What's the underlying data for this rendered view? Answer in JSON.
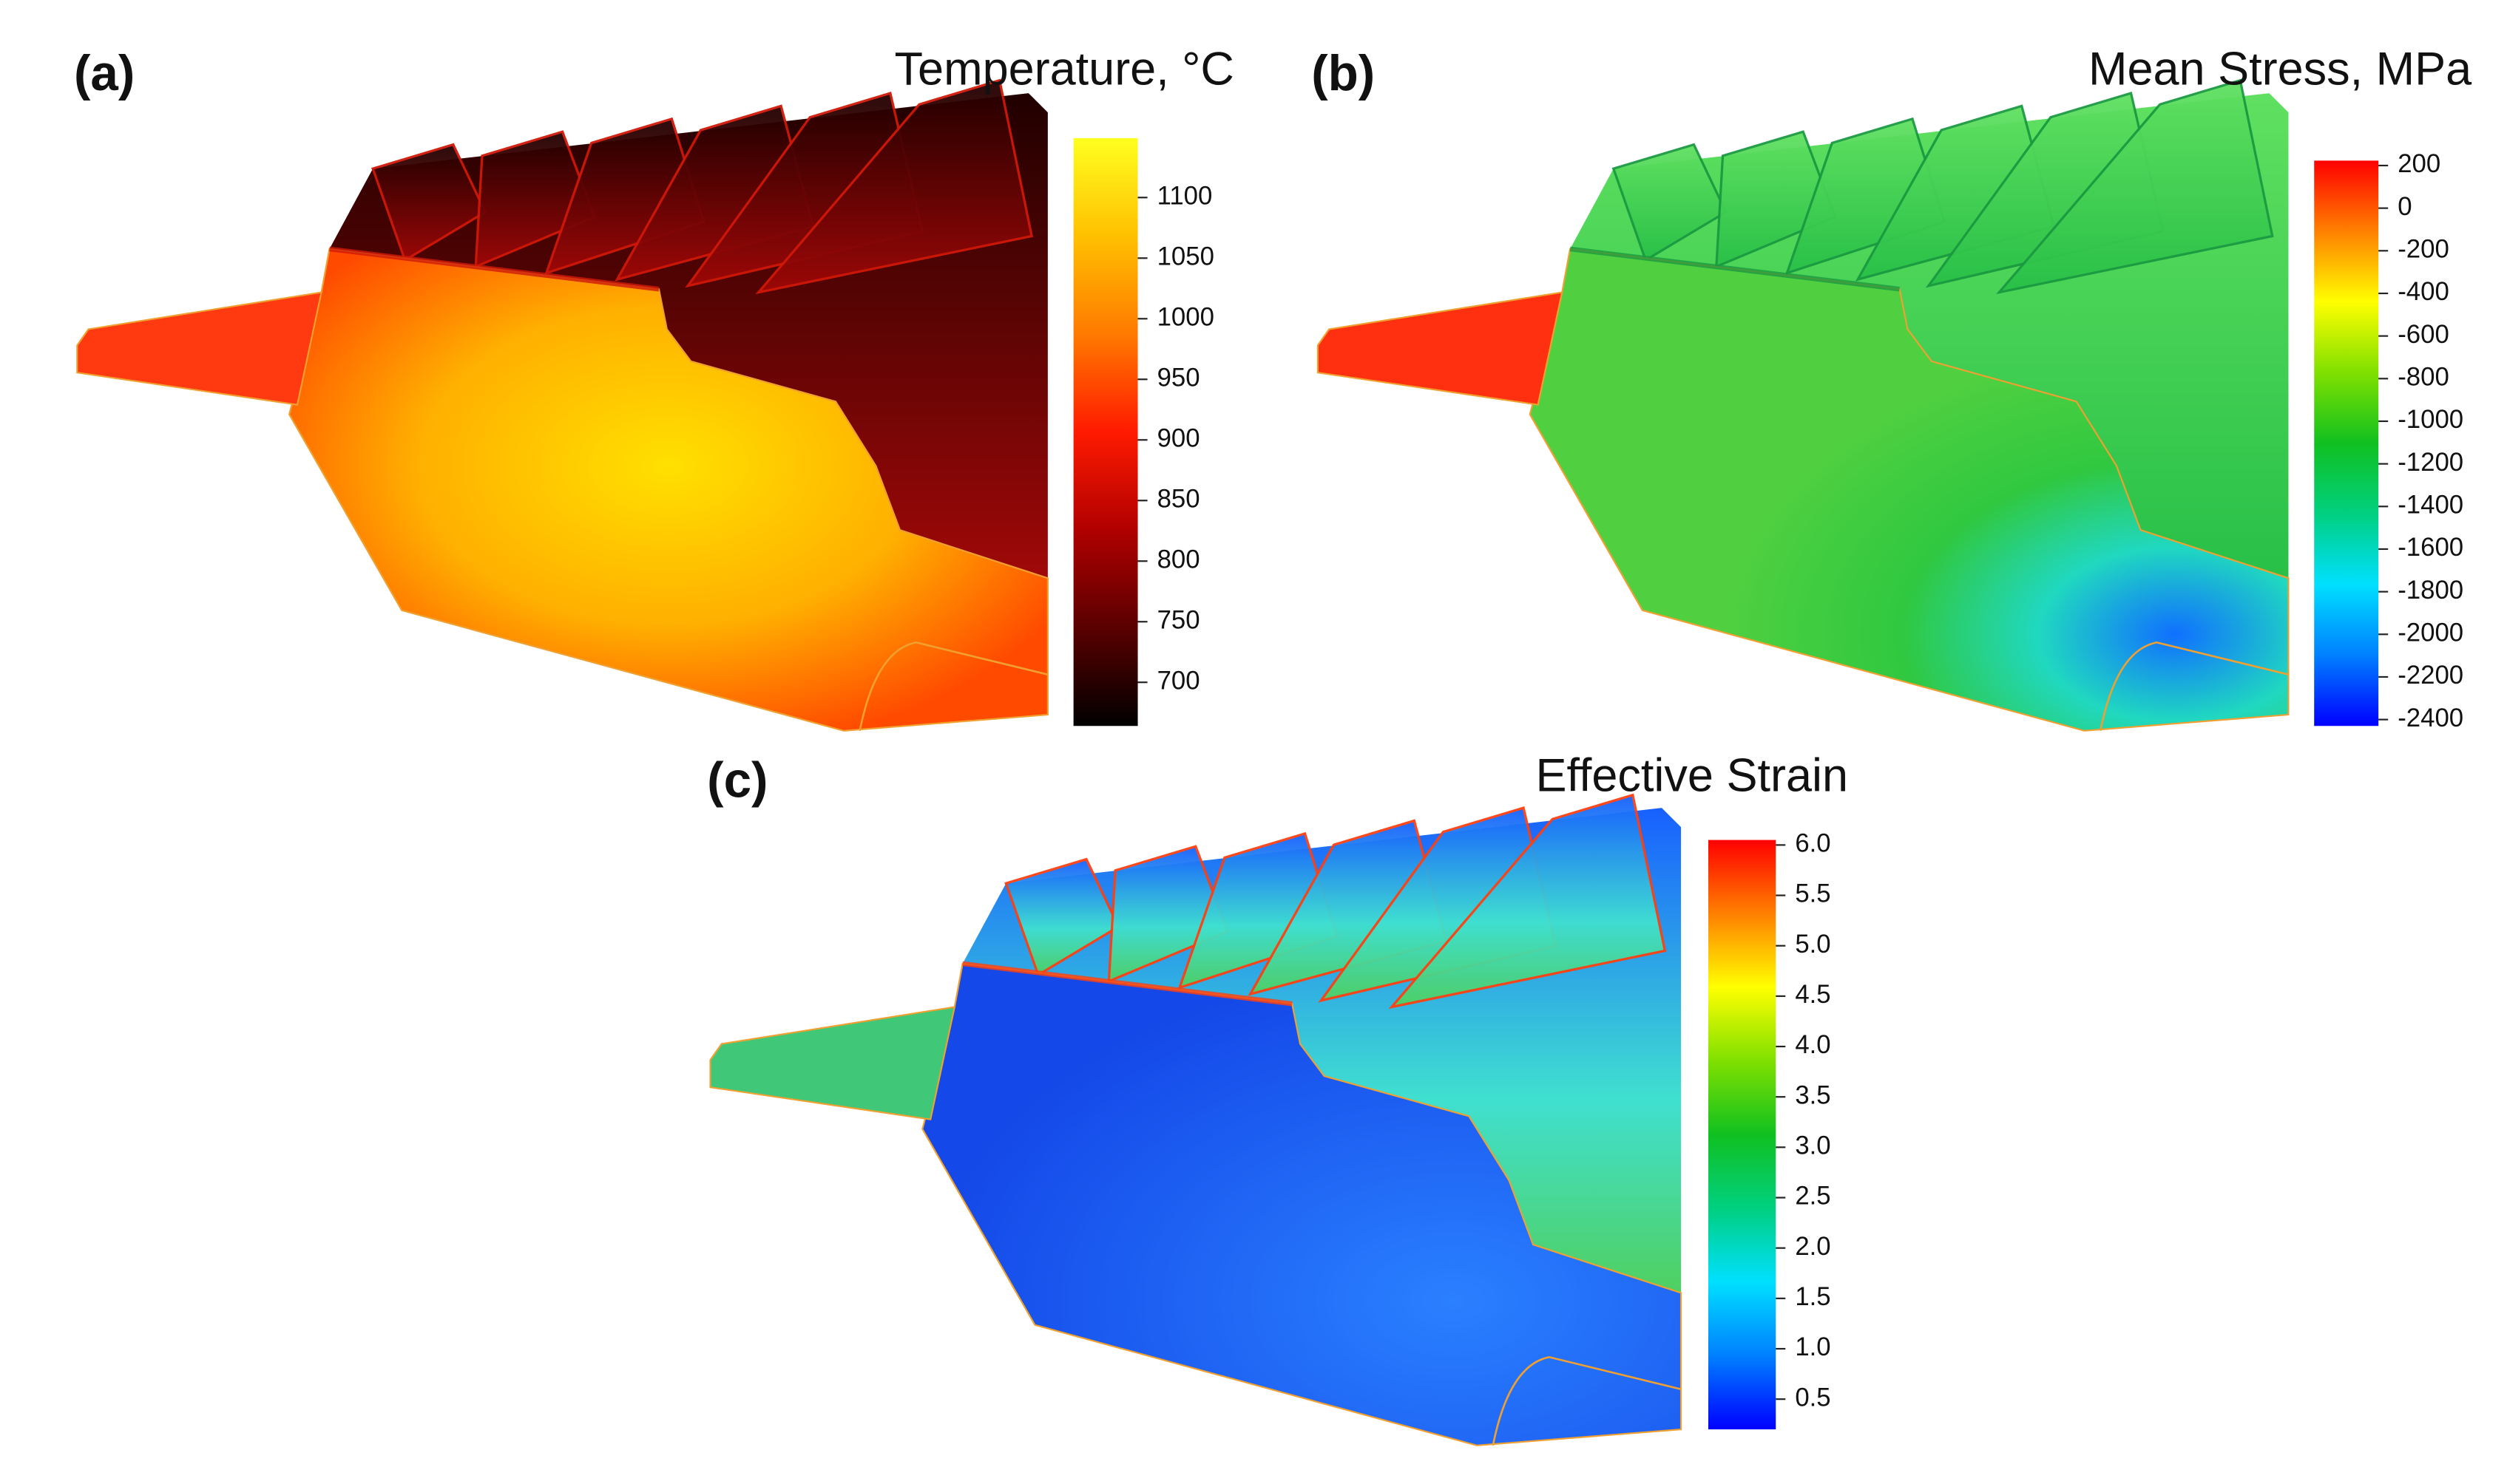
{
  "chart_data": [
    {
      "type": "contour",
      "label": "(a)",
      "title": "Temperature, °C",
      "clim": [
        664,
        1149
      ],
      "ticks": [
        700,
        750,
        800,
        850,
        900,
        950,
        1000,
        1050,
        1100
      ],
      "colormap": [
        "#000000",
        "#5a0000",
        "#b00000",
        "#ff1a00",
        "#ff7a00",
        "#ffc000",
        "#ffff20"
      ]
    },
    {
      "type": "contour",
      "label": "(b)",
      "title": "Mean Stress, MPa",
      "clim": [
        -2430,
        223
      ],
      "ticks": [
        -2400,
        -2200,
        -2000,
        -1800,
        -1600,
        -1400,
        -1200,
        -1000,
        -800,
        -600,
        -400,
        -200,
        0,
        200
      ],
      "colormap": [
        "#0000ff",
        "#0080ff",
        "#00e0ff",
        "#00d080",
        "#10c020",
        "#80e000",
        "#ffff00",
        "#ff8000",
        "#ff0000"
      ]
    },
    {
      "type": "contour",
      "label": "(c)",
      "title": "Effective Strain",
      "clim": [
        0.2,
        6.05
      ],
      "ticks": [
        0.5,
        {
          "value": 1,
          "label": "1.0"
        },
        1.5,
        {
          "value": 2,
          "label": "2.0"
        },
        2.5,
        {
          "value": 3,
          "label": "3.0"
        },
        3.5,
        {
          "value": 4,
          "label": "4.0"
        },
        4.5,
        {
          "value": 5,
          "label": "5.0"
        },
        5.5,
        {
          "value": 6,
          "label": "6.0"
        }
      ],
      "colormap": [
        "#0000ff",
        "#0080ff",
        "#00e0ff",
        "#00d080",
        "#10c020",
        "#80e000",
        "#ffff00",
        "#ff8000",
        "#ff0000"
      ]
    }
  ]
}
